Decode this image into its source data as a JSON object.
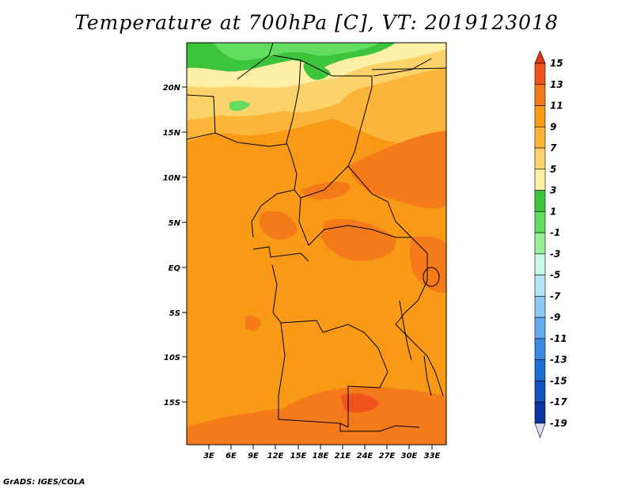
{
  "title": "Temperature at 700hPa [C], VT: 2019123018",
  "credit": "GrADS: IGES/COLA",
  "map": {
    "lat_labels": [
      "20N",
      "15N",
      "10N",
      "5N",
      "EQ",
      "5S",
      "10S",
      "15S"
    ],
    "lon_labels": [
      "3E",
      "6E",
      "9E",
      "12E",
      "15E",
      "18E",
      "21E",
      "24E",
      "27E",
      "30E",
      "33E"
    ],
    "lat_range": [
      -20,
      25
    ],
    "lon_range": [
      0,
      35
    ]
  },
  "colorbar": {
    "labels": [
      "15",
      "13",
      "11",
      "9",
      "7",
      "5",
      "3",
      "1",
      "-1",
      "-3",
      "-5",
      "-7",
      "-9",
      "-11",
      "-13",
      "-15",
      "-17",
      "-19"
    ],
    "colors": [
      "#e03a1c",
      "#f0541c",
      "#f57a1a",
      "#f89a16",
      "#fbb63a",
      "#fcd26a",
      "#fdf0a6",
      "#3cc43c",
      "#62dd62",
      "#98ef98",
      "#c8f8e6",
      "#b4e4f8",
      "#8cc8f4",
      "#64aaf0",
      "#3c8ce6",
      "#1e6ed8",
      "#1450c0",
      "#0c34a0",
      "#0a1a70"
    ]
  }
}
